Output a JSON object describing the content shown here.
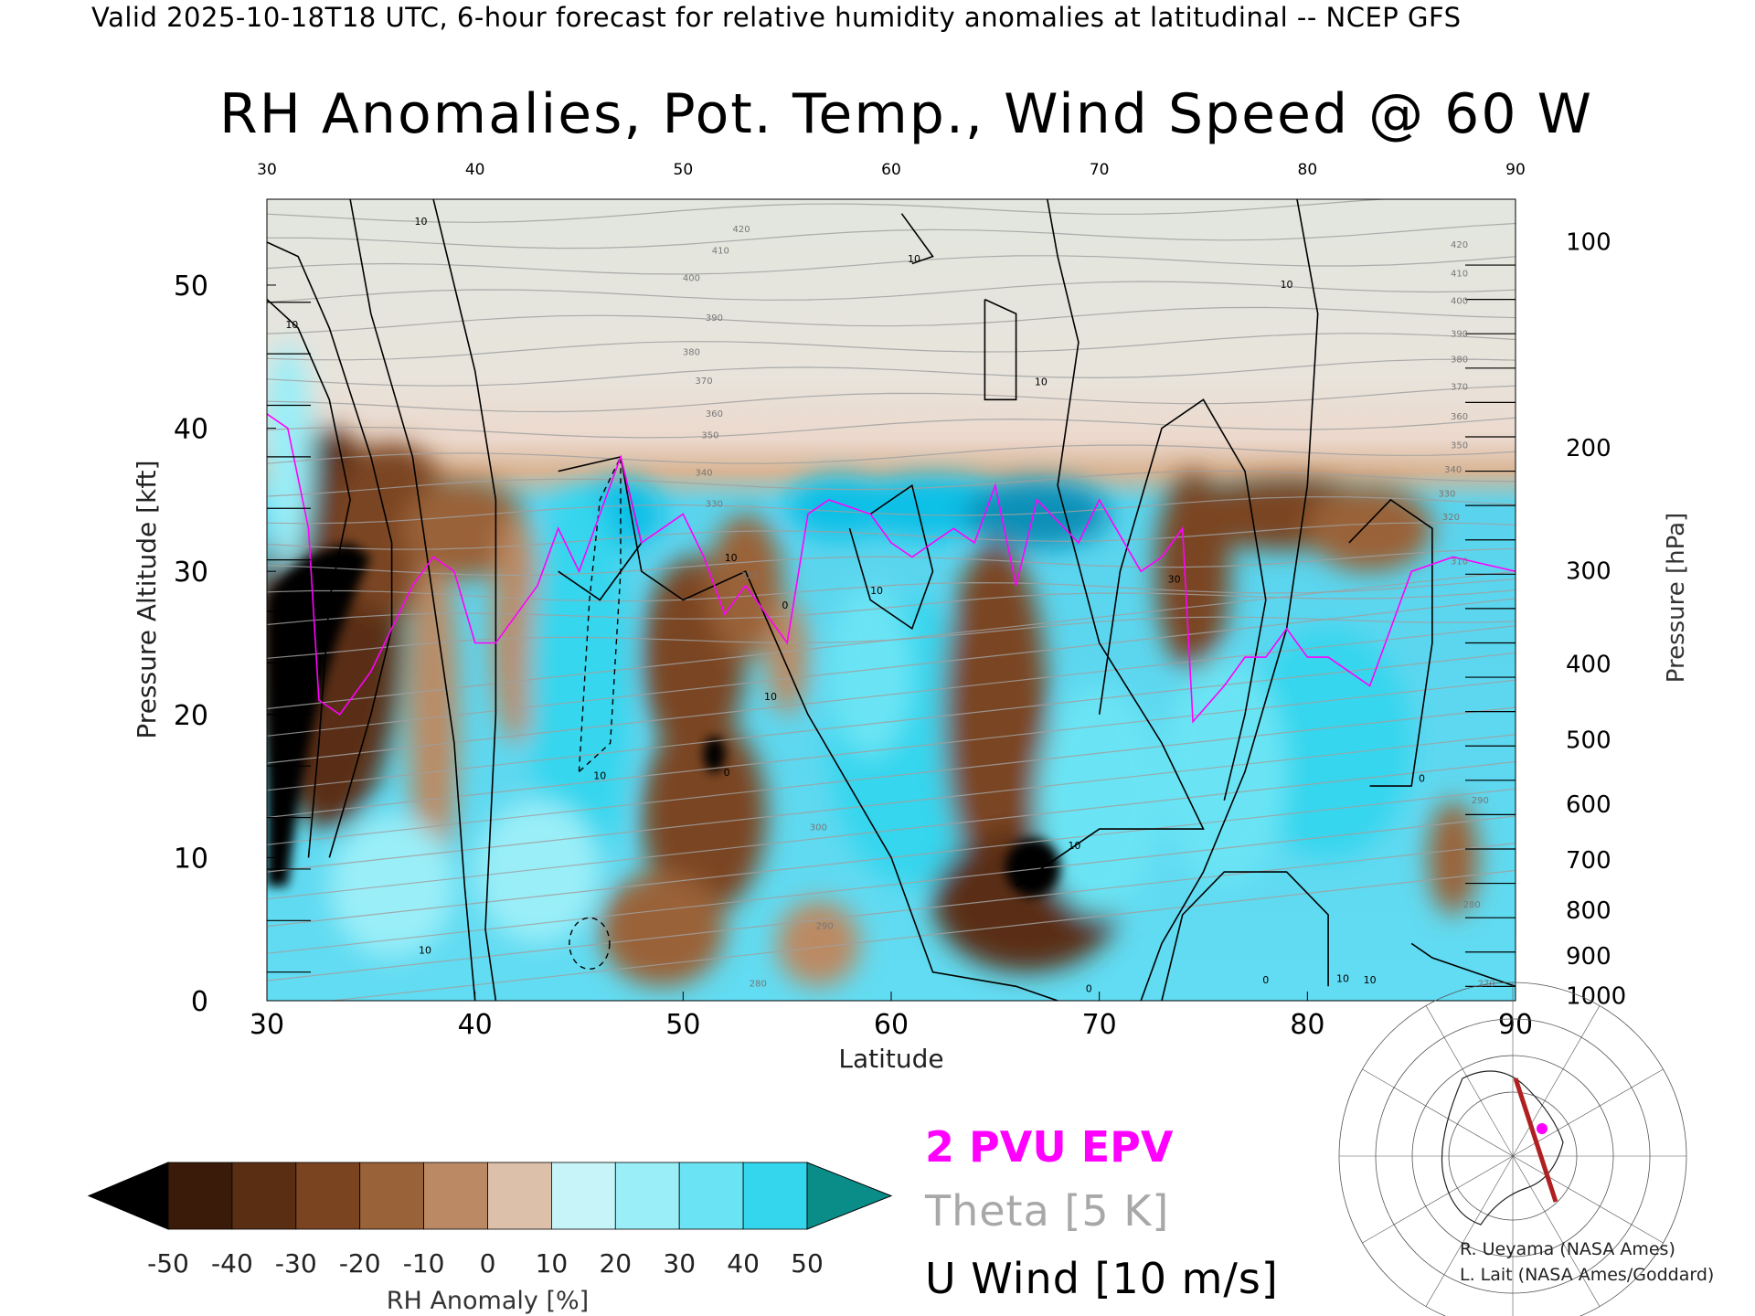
{
  "header": {
    "valid_text": "Valid 2025-10-18T18 UTC, 6-hour forecast for relative humidity anomalies at latitudinal -- NCEP GFS",
    "title": "RH Anomalies, Pot. Temp., Wind Speed @ 60 W"
  },
  "colors": {
    "epv": "#ff00ff",
    "theta": "#a0a0a0",
    "wind": "#000000",
    "colorbar": [
      "#000000",
      "#3a1a08",
      "#5a2e12",
      "#7a4420",
      "#9a6238",
      "#bb8a64",
      "#dcc0aa",
      "#e6e6dc",
      "#c6f4f8",
      "#9aeef8",
      "#6ae4f4",
      "#34d6ee",
      "#0cc0e6",
      "#0890b8",
      "#0a8c88"
    ]
  },
  "chart_data": {
    "type": "heatmap",
    "title": "RH Anomalies, Pot. Temp., Wind Speed @ 60 W",
    "xlabel": "Latitude",
    "ylabel_left": "Pressure Altitude [kft]",
    "ylabel_right": "Pressure [hPa]",
    "xlim": [
      30,
      90
    ],
    "ylim": [
      0,
      56
    ],
    "x_ticks": [
      "30",
      "40",
      "50",
      "60",
      "70",
      "80",
      "90"
    ],
    "y_ticks_left": [
      "0",
      "10",
      "20",
      "30",
      "40",
      "50"
    ],
    "y_ticks_right": [
      {
        "label": "100",
        "kft": 53.1
      },
      {
        "label": "200",
        "kft": 38.7
      },
      {
        "label": "300",
        "kft": 30.1
      },
      {
        "label": "400",
        "kft": 23.6
      },
      {
        "label": "500",
        "kft": 18.3
      },
      {
        "label": "600",
        "kft": 13.8
      },
      {
        "label": "700",
        "kft": 9.9
      },
      {
        "label": "800",
        "kft": 6.4
      },
      {
        "label": "900",
        "kft": 3.2
      },
      {
        "label": "1000",
        "kft": 0.4
      }
    ],
    "grid": false,
    "colorbar": {
      "label": "RH Anomaly [%]",
      "ticks": [
        "-50",
        "-40",
        "-30",
        "-20",
        "-10",
        "0",
        "10",
        "20",
        "30",
        "40",
        "50"
      ]
    },
    "theta_labels": [
      {
        "v": "420",
        "lat": 52.8,
        "kft": 53.7
      },
      {
        "v": "410",
        "lat": 51.8,
        "kft": 52.2
      },
      {
        "v": "400",
        "lat": 50.4,
        "kft": 50.3
      },
      {
        "v": "390",
        "lat": 51.5,
        "kft": 47.5
      },
      {
        "v": "380",
        "lat": 50.4,
        "kft": 45.1
      },
      {
        "v": "370",
        "lat": 51.0,
        "kft": 43.1
      },
      {
        "v": "360",
        "lat": 51.5,
        "kft": 40.8
      },
      {
        "v": "350",
        "lat": 51.3,
        "kft": 39.3
      },
      {
        "v": "340",
        "lat": 51.0,
        "kft": 36.7
      },
      {
        "v": "330",
        "lat": 51.5,
        "kft": 34.5
      },
      {
        "v": "320",
        "lat": 53.2,
        "kft": 29.5
      },
      {
        "v": "300",
        "lat": 56.5,
        "kft": 11.9
      },
      {
        "v": "290",
        "lat": 56.8,
        "kft": 5.0
      },
      {
        "v": "280",
        "lat": 53.6,
        "kft": 1.0
      },
      {
        "v": "420",
        "lat": 87.3,
        "kft": 52.6
      },
      {
        "v": "410",
        "lat": 87.3,
        "kft": 50.6
      },
      {
        "v": "400",
        "lat": 87.3,
        "kft": 48.7
      },
      {
        "v": "390",
        "lat": 87.3,
        "kft": 46.4
      },
      {
        "v": "380",
        "lat": 87.3,
        "kft": 44.6
      },
      {
        "v": "370",
        "lat": 87.3,
        "kft": 42.7
      },
      {
        "v": "360",
        "lat": 87.3,
        "kft": 40.6
      },
      {
        "v": "350",
        "lat": 87.3,
        "kft": 38.6
      },
      {
        "v": "340",
        "lat": 87.0,
        "kft": 36.9
      },
      {
        "v": "330",
        "lat": 86.7,
        "kft": 35.2
      },
      {
        "v": "320",
        "lat": 86.9,
        "kft": 33.6
      },
      {
        "v": "310",
        "lat": 87.3,
        "kft": 30.5
      },
      {
        "v": "290",
        "lat": 88.3,
        "kft": 13.8
      },
      {
        "v": "280",
        "lat": 87.9,
        "kft": 6.5
      },
      {
        "v": "270",
        "lat": 88.6,
        "kft": 1.0
      }
    ],
    "wind_labels": [
      {
        "v": "10",
        "lat": 37.4,
        "kft": 54.2
      },
      {
        "v": "10",
        "lat": 31.2,
        "kft": 47.0
      },
      {
        "v": "10",
        "lat": 61.1,
        "kft": 51.6
      },
      {
        "v": "10",
        "lat": 67.2,
        "kft": 43.0
      },
      {
        "v": "10",
        "lat": 79.0,
        "kft": 49.8
      },
      {
        "v": "10",
        "lat": 52.3,
        "kft": 30.7
      },
      {
        "v": "10",
        "lat": 59.3,
        "kft": 28.4
      },
      {
        "v": "10",
        "lat": 54.2,
        "kft": 21.0
      },
      {
        "v": "10",
        "lat": 46.0,
        "kft": 15.5
      },
      {
        "v": "0",
        "lat": 54.9,
        "kft": 27.4
      },
      {
        "v": "0",
        "lat": 52.1,
        "kft": 15.7
      },
      {
        "v": "0",
        "lat": 85.5,
        "kft": 15.3
      },
      {
        "v": "30",
        "lat": 73.6,
        "kft": 29.2
      },
      {
        "v": "10",
        "lat": 68.8,
        "kft": 10.6
      },
      {
        "v": "10",
        "lat": 37.6,
        "kft": 3.3
      },
      {
        "v": "10",
        "lat": 81.7,
        "kft": 1.3
      },
      {
        "v": "10",
        "lat": 83.0,
        "kft": 1.2
      },
      {
        "v": "0",
        "lat": 78.0,
        "kft": 1.2
      },
      {
        "v": "0",
        "lat": 69.5,
        "kft": 0.6
      }
    ]
  },
  "legend": {
    "epv_label": "2 PVU EPV",
    "theta_label": "Theta [5 K]",
    "wind_label": "U Wind [10 m/s]"
  },
  "credits": {
    "line1": "R. Ueyama (NASA Ames)",
    "line2": "L. Lait (NASA Ames/Goddard)"
  }
}
